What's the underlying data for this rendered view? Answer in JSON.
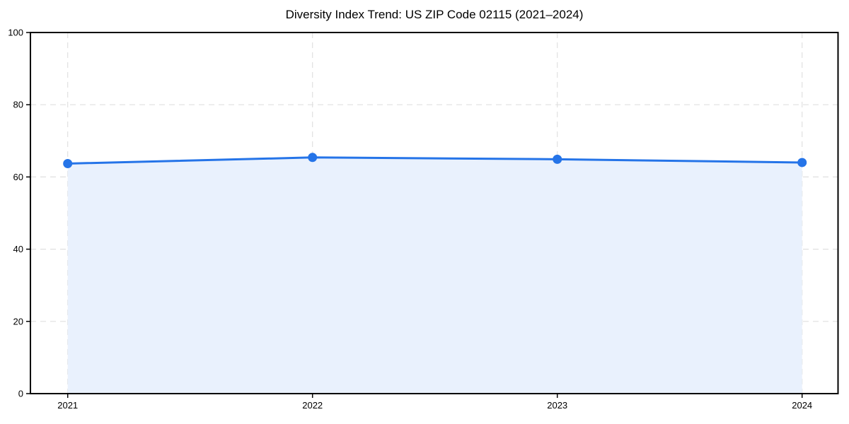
{
  "chart_data": {
    "type": "line",
    "title": "Diversity Index Trend: US ZIP Code 02115 (2021–2024)",
    "categories": [
      "2021",
      "2022",
      "2023",
      "2024"
    ],
    "values": [
      63.7,
      65.4,
      64.9,
      64.0
    ],
    "series": [
      {
        "name": "Diversity Index",
        "values": [
          63.7,
          65.4,
          64.9,
          64.0
        ]
      }
    ],
    "xlabel": "",
    "ylabel": "",
    "ylim": [
      0,
      100
    ],
    "yticks": [
      0,
      20,
      40,
      60,
      80,
      100
    ],
    "grid": "dashed, horizontal and vertical",
    "legend": "none",
    "area_fill": true,
    "marker": "circle",
    "colors": {
      "line": "#2574e8",
      "marker": "#2574e8",
      "area_fill": "#e9f1fd",
      "grid": "#e0e0e0",
      "axis": "#000000",
      "background": "#ffffff"
    }
  }
}
